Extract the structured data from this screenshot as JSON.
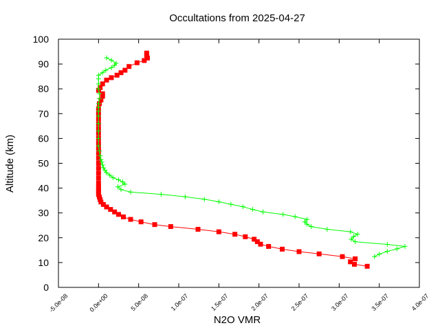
{
  "chart_data": {
    "type": "line",
    "title": "Occultations from 2025-04-27",
    "xlabel": "N2O VMR",
    "ylabel": "Altitude (km)",
    "xlim": [
      -5e-08,
      4e-07
    ],
    "ylim": [
      0,
      100
    ],
    "x_ticks": [
      -5e-08,
      0,
      5e-08,
      1e-07,
      1.5e-07,
      2e-07,
      2.5e-07,
      3e-07,
      3.5e-07,
      4e-07
    ],
    "x_tick_labels": [
      "-5.0e-08",
      "0.0e+00",
      "5.0e-08",
      "1.0e-07",
      "1.5e-07",
      "2.0e-07",
      "2.5e-07",
      "3.0e-07",
      "3.5e-07",
      "4.0e-07"
    ],
    "y_ticks": [
      0,
      10,
      20,
      30,
      40,
      50,
      60,
      70,
      80,
      90,
      100
    ],
    "y_tick_labels": [
      "0",
      "10",
      "20",
      "30",
      "40",
      "50",
      "60",
      "70",
      "80",
      "90",
      "100"
    ],
    "grid": false,
    "legend": "none",
    "series": [
      {
        "color": "#ff0000",
        "marker": "square",
        "points": [
          [
            3.35e-07,
            8.5
          ],
          [
            3.19e-07,
            9.3
          ],
          [
            3.14e-07,
            10.3
          ],
          [
            3.2e-07,
            11.5
          ],
          [
            3.04e-07,
            12.4
          ],
          [
            2.75e-07,
            13.5
          ],
          [
            2.5e-07,
            14.4
          ],
          [
            2.29e-07,
            15.4
          ],
          [
            2.12e-07,
            16.5
          ],
          [
            2.02e-07,
            17.4
          ],
          [
            1.98e-07,
            18.4
          ],
          [
            1.94e-07,
            19.4
          ],
          [
            1.83e-07,
            20.4
          ],
          [
            1.7e-07,
            21.4
          ],
          [
            1.5e-07,
            22.4
          ],
          [
            1.24e-07,
            23.4
          ],
          [
            9e-08,
            24.5
          ],
          [
            7e-08,
            25.3
          ],
          [
            5.3e-08,
            26.4
          ],
          [
            4e-08,
            27.4
          ],
          [
            3.1e-08,
            28.4
          ],
          [
            2.5e-08,
            29.4
          ],
          [
            2e-08,
            30.4
          ],
          [
            1.5e-08,
            31.4
          ],
          [
            1e-08,
            32.4
          ],
          [
            6e-09,
            33.4
          ],
          [
            3e-09,
            34.4
          ],
          [
            2e-09,
            35.4
          ],
          [
            1e-09,
            36.4
          ],
          [
            0,
            37.4
          ],
          [
            0,
            38.4
          ],
          [
            0,
            39.4
          ],
          [
            0,
            40.4
          ],
          [
            0,
            42
          ],
          [
            0,
            44
          ],
          [
            0,
            46
          ],
          [
            0,
            48
          ],
          [
            0,
            50
          ],
          [
            0,
            52
          ],
          [
            0,
            54
          ],
          [
            0,
            56
          ],
          [
            0,
            58
          ],
          [
            0,
            60
          ],
          [
            0,
            62
          ],
          [
            0,
            64
          ],
          [
            0,
            66
          ],
          [
            0,
            68
          ],
          [
            0,
            70
          ],
          [
            0,
            72
          ],
          [
            1e-09,
            74
          ],
          [
            3e-09,
            75.5
          ],
          [
            5e-09,
            77
          ],
          [
            5e-09,
            78
          ],
          [
            0,
            79.4
          ],
          [
            2e-09,
            80.5
          ],
          [
            5e-09,
            82
          ],
          [
            1e-08,
            83.5
          ],
          [
            1.6e-08,
            84.5
          ],
          [
            2.3e-08,
            85.5
          ],
          [
            2.8e-08,
            86.5
          ],
          [
            3.3e-08,
            87.5
          ],
          [
            3.8e-08,
            89
          ],
          [
            4.8e-08,
            90.5
          ],
          [
            5.7e-08,
            91.4
          ],
          [
            6.1e-08,
            92.4
          ],
          [
            6e-08,
            93.4
          ],
          [
            6e-08,
            94.4
          ]
        ]
      },
      {
        "color": "#00ff00",
        "marker": "plus",
        "points": [
          [
            3.44e-07,
            12.4
          ],
          [
            3.5e-07,
            13.4
          ],
          [
            3.6e-07,
            14.5
          ],
          [
            3.72e-07,
            15.5
          ],
          [
            3.82e-07,
            16.5
          ],
          [
            3.6e-07,
            17.3
          ],
          [
            3.2e-07,
            18.4
          ],
          [
            3.15e-07,
            19.4
          ],
          [
            3.18e-07,
            20.5
          ],
          [
            3.23e-07,
            21.4
          ],
          [
            3.14e-07,
            22.4
          ],
          [
            2.85e-07,
            23.4
          ],
          [
            2.65e-07,
            24.5
          ],
          [
            2.6e-07,
            25.4
          ],
          [
            2.57e-07,
            26.4
          ],
          [
            2.6e-07,
            27.4
          ],
          [
            2.45e-07,
            28.5
          ],
          [
            2.3e-07,
            29.4
          ],
          [
            2.05e-07,
            30.4
          ],
          [
            1.92e-07,
            31.4
          ],
          [
            1.8e-07,
            32.5
          ],
          [
            1.65e-07,
            33.5
          ],
          [
            1.5e-07,
            34.5
          ],
          [
            1.32e-07,
            35.5
          ],
          [
            1.08e-07,
            36.5
          ],
          [
            7.8e-08,
            37.5
          ],
          [
            4e-08,
            38.4
          ],
          [
            2.8e-08,
            39.4
          ],
          [
            2.4e-08,
            40.5
          ],
          [
            3.3e-08,
            41.6
          ],
          [
            3e-08,
            42.5
          ],
          [
            2.5e-08,
            43.3
          ],
          [
            1.8e-08,
            44.2
          ],
          [
            1.4e-08,
            45.2
          ],
          [
            1e-08,
            46.2
          ],
          [
            8e-09,
            47.2
          ],
          [
            6e-09,
            48.2
          ],
          [
            5e-09,
            49.3
          ],
          [
            4e-09,
            50.5
          ],
          [
            3e-09,
            51.5
          ],
          [
            2e-09,
            53
          ],
          [
            1e-09,
            55
          ],
          [
            0,
            57
          ],
          [
            0,
            60
          ],
          [
            0,
            63
          ],
          [
            0,
            66
          ],
          [
            0,
            69
          ],
          [
            0,
            71
          ],
          [
            0,
            72.5
          ],
          [
            0,
            74
          ],
          [
            1e-09,
            76
          ],
          [
            1e-09,
            78
          ],
          [
            0,
            80
          ],
          [
            0,
            82
          ],
          [
            0,
            84
          ],
          [
            0,
            85.5
          ],
          [
            5e-09,
            86.5
          ],
          [
            9e-09,
            87.5
          ],
          [
            1.6e-08,
            88.5
          ],
          [
            2e-08,
            89.5
          ],
          [
            2.2e-08,
            90.3
          ],
          [
            1.6e-08,
            91.5
          ],
          [
            1e-08,
            92.5
          ]
        ]
      }
    ]
  }
}
